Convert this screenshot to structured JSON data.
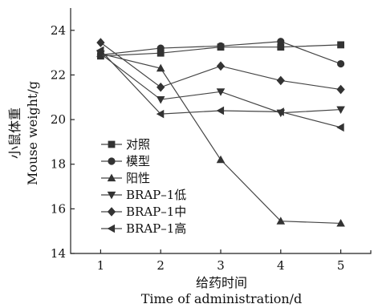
{
  "chart_data": {
    "type": "line",
    "title": "",
    "xlabel_zh": "给药时间",
    "xlabel_en": "Time of administration/d",
    "ylabel_zh": "小鼠体重",
    "ylabel_en": "Mouse weight/g",
    "x": [
      1,
      2,
      3,
      4,
      5
    ],
    "xlim": [
      0.5,
      5.5
    ],
    "ylim": [
      14,
      25
    ],
    "yticks": [
      14,
      16,
      18,
      20,
      22,
      24
    ],
    "grid": false,
    "legend_position": "bottom-left",
    "series": [
      {
        "name": "对照",
        "marker": "square",
        "values": [
          22.85,
          22.98,
          23.25,
          23.25,
          23.35
        ]
      },
      {
        "name": "模型",
        "marker": "circle",
        "values": [
          22.9,
          23.2,
          23.3,
          23.5,
          22.5
        ]
      },
      {
        "name": "阳性",
        "marker": "triangle-up",
        "values": [
          22.95,
          22.3,
          18.2,
          15.45,
          15.35
        ]
      },
      {
        "name": "BRAP–1低",
        "marker": "triangle-down",
        "values": [
          22.95,
          20.9,
          21.25,
          20.3,
          20.45
        ]
      },
      {
        "name": "BRAP–1中",
        "marker": "diamond",
        "values": [
          23.45,
          21.45,
          22.4,
          21.75,
          21.35
        ]
      },
      {
        "name": "BRAP–1高",
        "marker": "triangle-left",
        "values": [
          23.1,
          20.25,
          20.4,
          20.35,
          19.65
        ]
      }
    ]
  }
}
